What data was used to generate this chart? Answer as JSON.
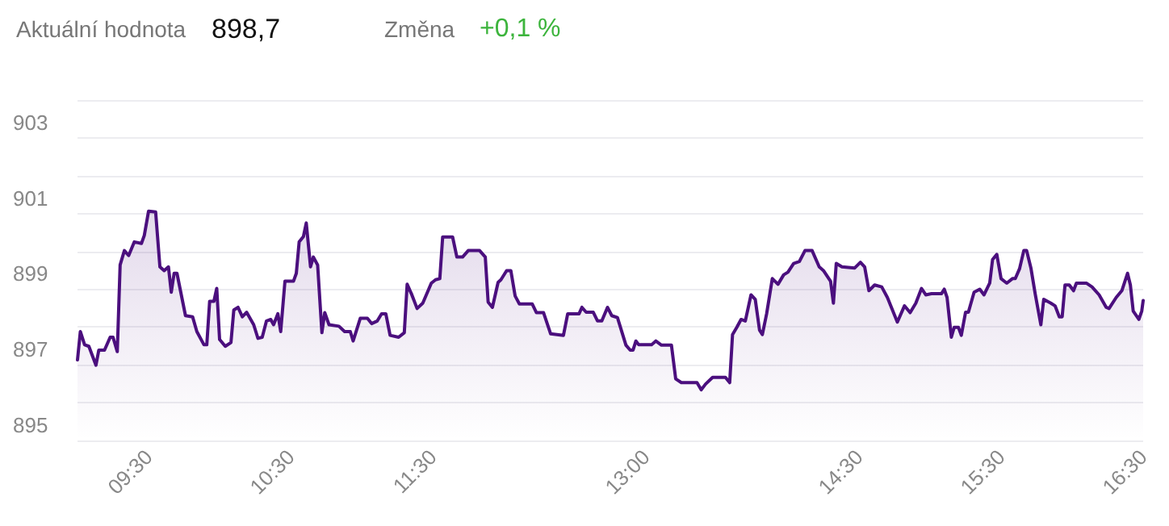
{
  "chart_data": {
    "type": "area",
    "annotations": [
      "Aktuální hodnota",
      "898,7",
      "Změna",
      "+0,1 %"
    ],
    "x": [
      9.0,
      9.02,
      9.05,
      9.08,
      9.13,
      9.15,
      9.19,
      9.23,
      9.25,
      9.28,
      9.3,
      9.33,
      9.36,
      9.4,
      9.45,
      9.47,
      9.5,
      9.55,
      9.58,
      9.61,
      9.64,
      9.66,
      9.68,
      9.7,
      9.76,
      9.81,
      9.84,
      9.89,
      9.91,
      9.93,
      9.96,
      9.98,
      10.0,
      10.04,
      10.08,
      10.1,
      10.13,
      10.16,
      10.19,
      10.24,
      10.27,
      10.3,
      10.33,
      10.36,
      10.38,
      10.41,
      10.43,
      10.46,
      10.52,
      10.54,
      10.56,
      10.59,
      10.61,
      10.64,
      10.66,
      10.69,
      10.72,
      10.74,
      10.77,
      10.84,
      10.88,
      10.92,
      10.94,
      10.99,
      11.04,
      11.07,
      11.11,
      11.14,
      11.17,
      11.2,
      11.26,
      11.3,
      11.32,
      11.35,
      11.39,
      11.43,
      11.49,
      11.52,
      11.55,
      11.57,
      11.64,
      11.67,
      11.71,
      11.75,
      11.83,
      11.87,
      11.89,
      11.92,
      11.96,
      11.98,
      12.02,
      12.05,
      12.08,
      12.11,
      12.2,
      12.23,
      12.28,
      12.33,
      12.42,
      12.45,
      12.53,
      12.55,
      12.58,
      12.63,
      12.66,
      12.69,
      12.73,
      12.76,
      12.8,
      12.86,
      12.89,
      12.91,
      12.93,
      12.95,
      13.04,
      13.07,
      13.11,
      13.18,
      13.21,
      13.25,
      13.36,
      13.39,
      13.42,
      13.47,
      13.56,
      13.59,
      13.61,
      13.64,
      13.67,
      13.7,
      13.74,
      13.77,
      13.8,
      13.82,
      13.85,
      13.89,
      13.93,
      13.97,
      14.0,
      14.04,
      14.08,
      14.12,
      14.17,
      14.22,
      14.25,
      14.3,
      14.32,
      14.34,
      14.38,
      14.47,
      14.51,
      14.54,
      14.57,
      14.61,
      14.66,
      14.7,
      14.77,
      14.82,
      14.86,
      14.9,
      14.94,
      14.97,
      15.01,
      15.08,
      15.1,
      15.12,
      15.15,
      15.17,
      15.2,
      15.22,
      15.25,
      15.27,
      15.31,
      15.35,
      15.38,
      15.42,
      15.44,
      15.47,
      15.5,
      15.54,
      15.58,
      15.6,
      15.63,
      15.66,
      15.68,
      15.71,
      15.74,
      15.78,
      15.8,
      15.85,
      15.88,
      15.91,
      15.93,
      15.95,
      15.98,
      16.01,
      16.03,
      16.1,
      16.14,
      16.19,
      16.24,
      16.26,
      16.31,
      16.35,
      16.39,
      16.41,
      16.43,
      16.47,
      16.49,
      16.5
    ],
    "series": [
      {
        "color": "#4b0f7e",
        "values": [
          897.13,
          897.88,
          897.53,
          897.49,
          896.99,
          897.39,
          897.39,
          897.73,
          897.73,
          897.35,
          899.64,
          900.02,
          899.89,
          900.25,
          900.21,
          900.42,
          901.06,
          901.04,
          899.59,
          899.49,
          899.59,
          898.92,
          899.42,
          899.42,
          898.3,
          898.27,
          897.88,
          897.53,
          897.53,
          898.68,
          898.68,
          899.02,
          897.67,
          897.49,
          897.59,
          898.45,
          898.52,
          898.27,
          898.39,
          898.06,
          897.7,
          897.73,
          898.16,
          898.2,
          898.06,
          898.35,
          897.88,
          899.21,
          899.21,
          899.42,
          900.25,
          900.39,
          900.75,
          899.59,
          899.85,
          899.64,
          897.85,
          898.38,
          898.06,
          898.02,
          897.88,
          897.88,
          897.63,
          898.23,
          898.23,
          898.09,
          898.16,
          898.35,
          898.35,
          897.78,
          897.73,
          897.85,
          899.13,
          898.88,
          898.49,
          898.63,
          899.16,
          899.25,
          899.28,
          900.38,
          900.38,
          899.85,
          899.85,
          900.02,
          900.02,
          899.85,
          898.66,
          898.52,
          899.18,
          899.25,
          899.49,
          899.49,
          898.82,
          898.61,
          898.61,
          898.38,
          898.38,
          897.82,
          897.78,
          898.35,
          898.35,
          898.52,
          898.39,
          898.39,
          898.16,
          898.16,
          898.52,
          898.3,
          898.25,
          897.52,
          897.39,
          897.39,
          897.63,
          897.53,
          897.53,
          897.63,
          897.52,
          897.52,
          896.63,
          896.53,
          896.53,
          896.34,
          896.49,
          896.67,
          896.67,
          896.53,
          897.8,
          897.99,
          898.2,
          898.16,
          898.85,
          898.73,
          897.92,
          897.8,
          898.35,
          899.28,
          899.13,
          899.38,
          899.45,
          899.68,
          899.73,
          900.02,
          900.02,
          899.59,
          899.49,
          899.21,
          898.63,
          899.68,
          899.59,
          899.56,
          899.71,
          899.59,
          898.96,
          899.11,
          899.06,
          898.78,
          898.13,
          898.56,
          898.38,
          898.63,
          899.02,
          898.85,
          898.88,
          898.88,
          899.0,
          898.78,
          897.73,
          897.99,
          897.99,
          897.78,
          898.39,
          898.39,
          898.92,
          899.0,
          898.85,
          899.16,
          899.78,
          899.92,
          899.28,
          899.16,
          899.28,
          899.28,
          899.54,
          900.02,
          900.02,
          899.56,
          898.88,
          898.06,
          898.73,
          898.63,
          898.56,
          898.27,
          898.27,
          899.11,
          899.11,
          898.96,
          899.16,
          899.16,
          899.06,
          898.85,
          898.52,
          898.49,
          898.78,
          898.96,
          899.42,
          899.11,
          898.42,
          898.2,
          898.42,
          898.7
        ]
      }
    ],
    "xlim": [
      9,
      16.5
    ],
    "xticks": [
      {
        "value": 9.5,
        "label": "09:30"
      },
      {
        "value": 10.5,
        "label": "10:30"
      },
      {
        "value": 11.5,
        "label": "11:30"
      },
      {
        "value": 13,
        "label": "13:00"
      },
      {
        "value": 14.5,
        "label": "14:30"
      },
      {
        "value": 15.5,
        "label": "15:30"
      },
      {
        "value": 16.5,
        "label": "16:30"
      }
    ],
    "ylim": [
      895,
      904
    ],
    "yticks": [
      895,
      {
        "value": 896,
        "label": null
      },
      897,
      {
        "value": 898,
        "label": null
      },
      899,
      {
        "value": 900,
        "label": null
      },
      901,
      {
        "value": 902,
        "label": null
      },
      903,
      {
        "value": 904,
        "label": null
      }
    ],
    "grid": "y",
    "marker": "none",
    "line_style": "solid"
  }
}
